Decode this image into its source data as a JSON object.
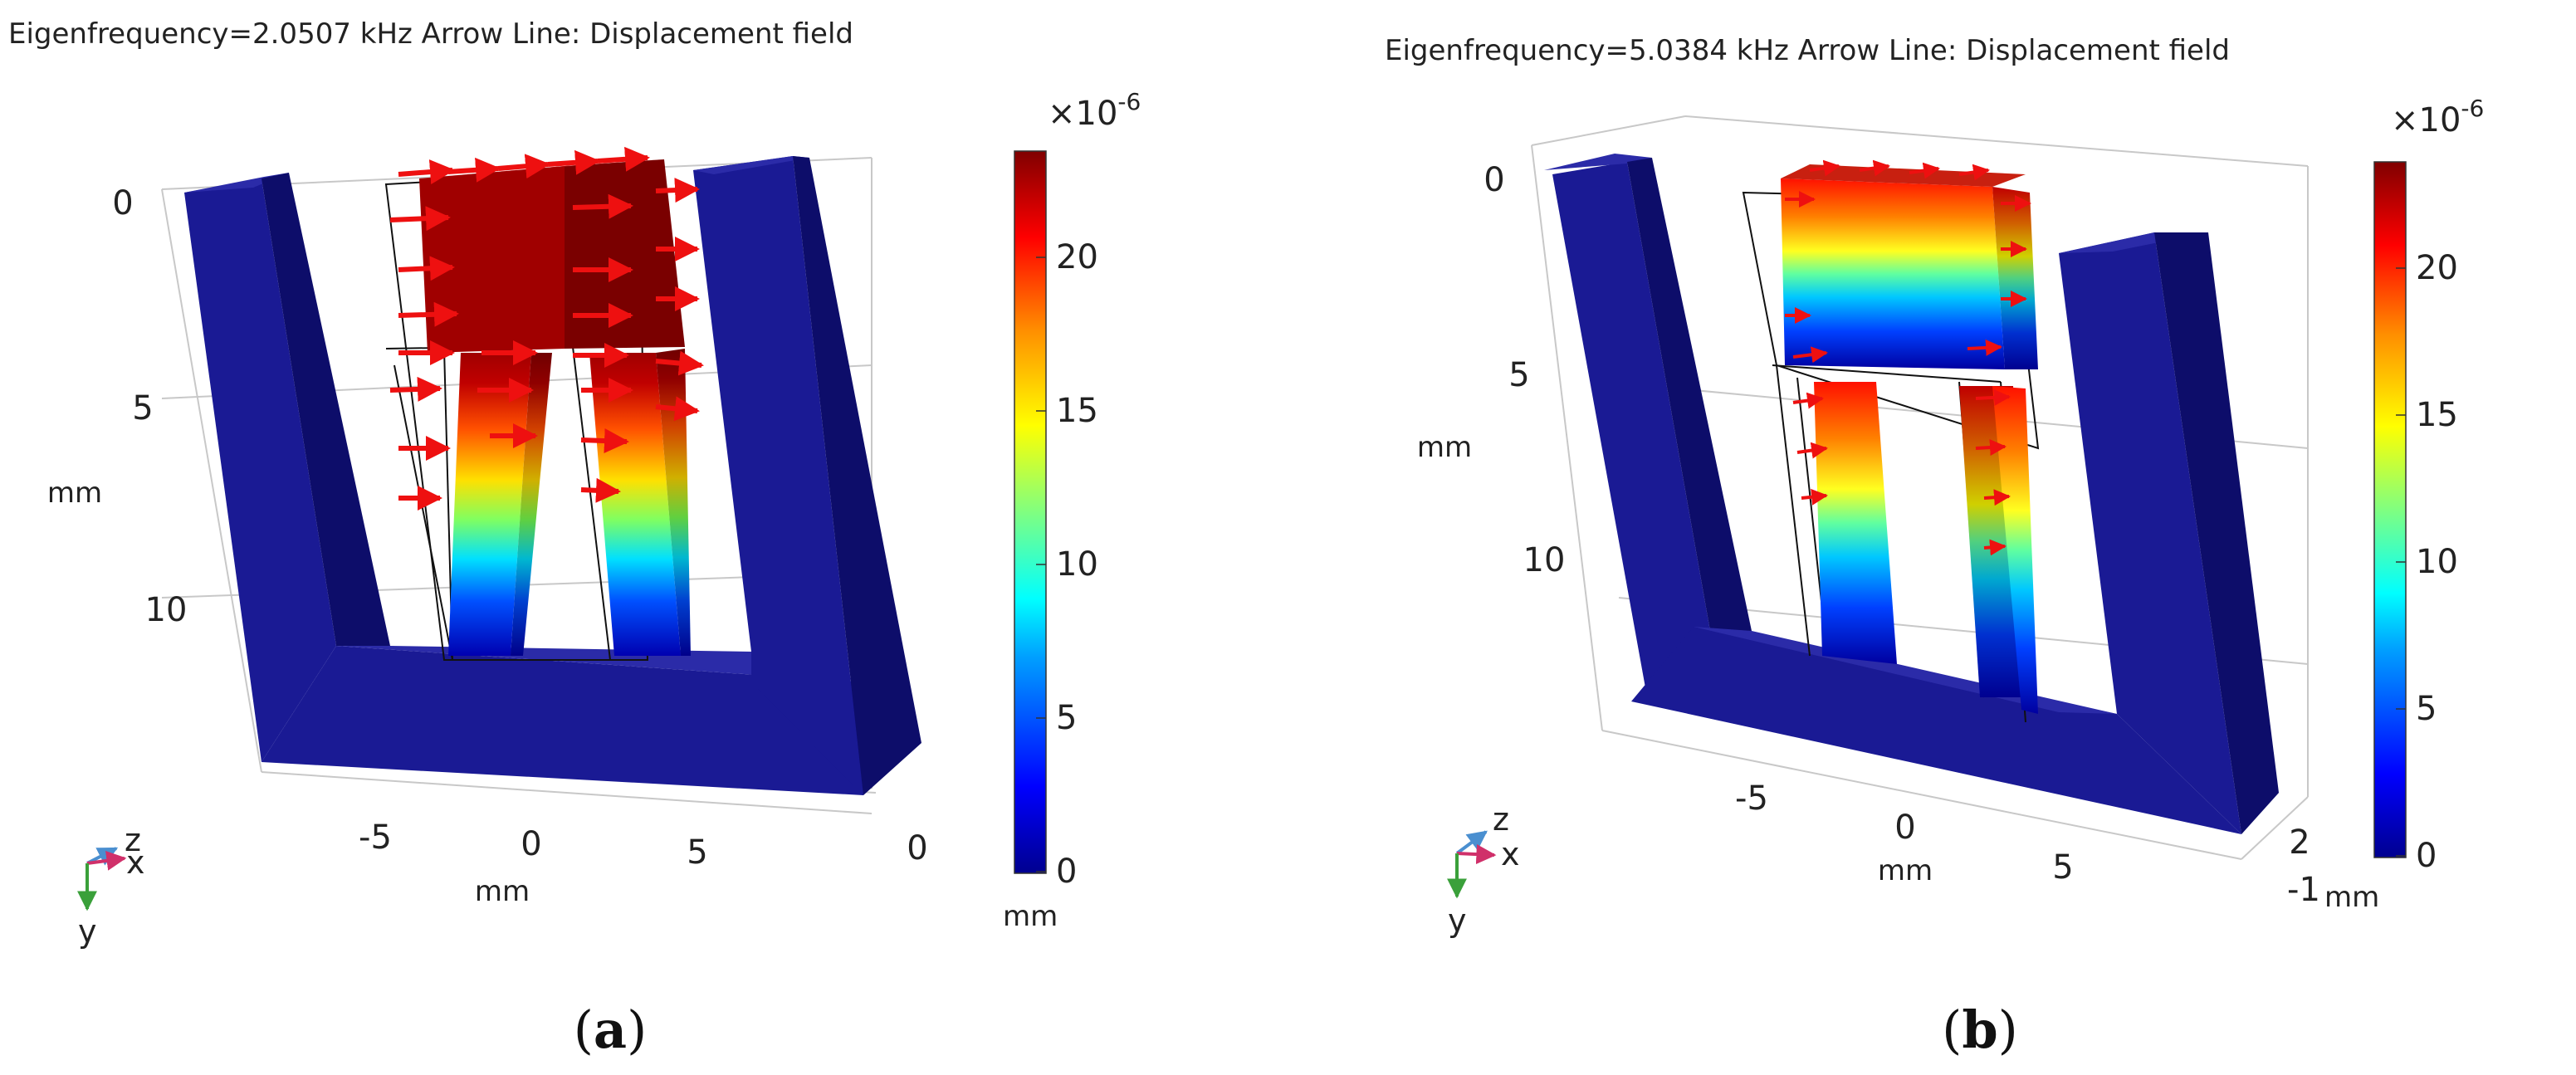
{
  "panels": [
    {
      "id": "a",
      "title": "Eigenfrequency=2.0507 kHz  Arrow Line: Displacement field",
      "caption_letter": "a",
      "y_axis": {
        "ticks": [
          "0",
          "5",
          "10"
        ],
        "unit": "mm"
      },
      "x_axis": {
        "ticks": [
          "-5",
          "0",
          "5"
        ],
        "unit": "mm"
      },
      "z_axis": {
        "ticks": [
          "0"
        ]
      },
      "colorbar": {
        "multiplier": "×10",
        "exponent": "-6",
        "ticks": [
          "0",
          "5",
          "10",
          "15",
          "20"
        ],
        "unit": "mm"
      },
      "triad": {
        "z": "z",
        "x": "x",
        "y": "y"
      }
    },
    {
      "id": "b",
      "title": "Eigenfrequency=5.0384 kHz  Arrow Line: Displacement field",
      "caption_letter": "b",
      "y_axis": {
        "ticks": [
          "0",
          "5",
          "10"
        ],
        "unit": "mm"
      },
      "x_axis": {
        "ticks": [
          "-5",
          "0",
          "5"
        ],
        "unit": "mm"
      },
      "z_axis": {
        "ticks": [
          "2",
          "-1"
        ]
      },
      "colorbar": {
        "multiplier": "×10",
        "exponent": "-6",
        "ticks": [
          "0",
          "5",
          "10",
          "15",
          "20"
        ],
        "unit": "mm"
      },
      "triad": {
        "z": "z",
        "x": "x",
        "y": "y"
      }
    }
  ],
  "colors": {
    "core_top": "#2b2ba8",
    "core_front": "#1a1a94",
    "core_side": "#0d0d6a",
    "arrow": "#ee1010",
    "colormap": [
      "#00008f",
      "#0000ff",
      "#00a0ff",
      "#00ffff",
      "#80ff80",
      "#ffff00",
      "#ff9000",
      "#ff0000",
      "#800000"
    ]
  }
}
